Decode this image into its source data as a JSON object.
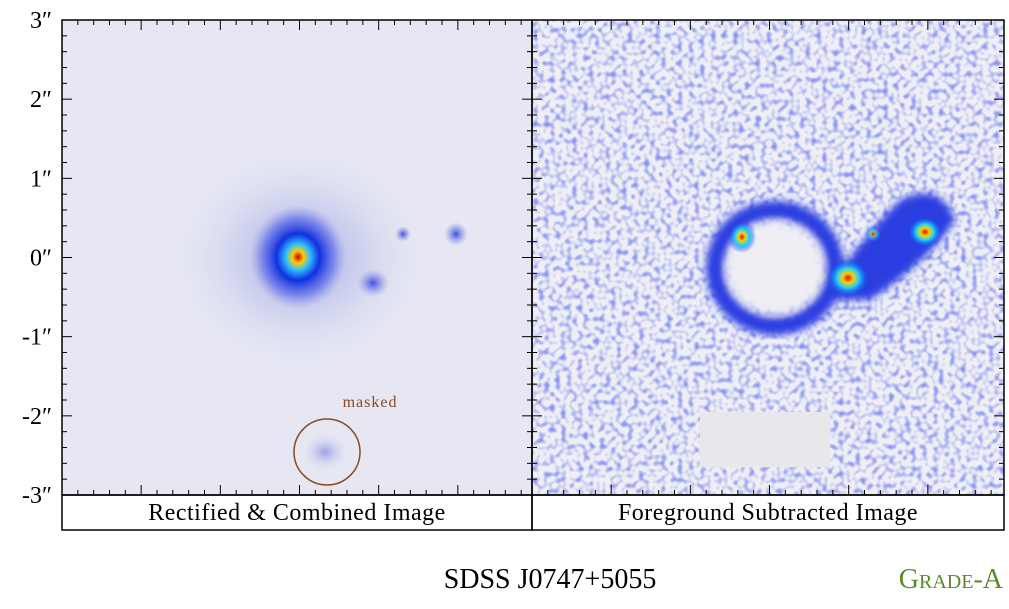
{
  "y_ticks": [
    "3″",
    "2″",
    "1″",
    "0″",
    "-1″",
    "-2″",
    "-3″"
  ],
  "panels": [
    {
      "caption": "Rectified & Combined Image",
      "annotation": "masked"
    },
    {
      "caption": "Foreground Subtracted Image"
    }
  ],
  "title": "SDSS J0747+5055",
  "grade": "Grade-A"
}
